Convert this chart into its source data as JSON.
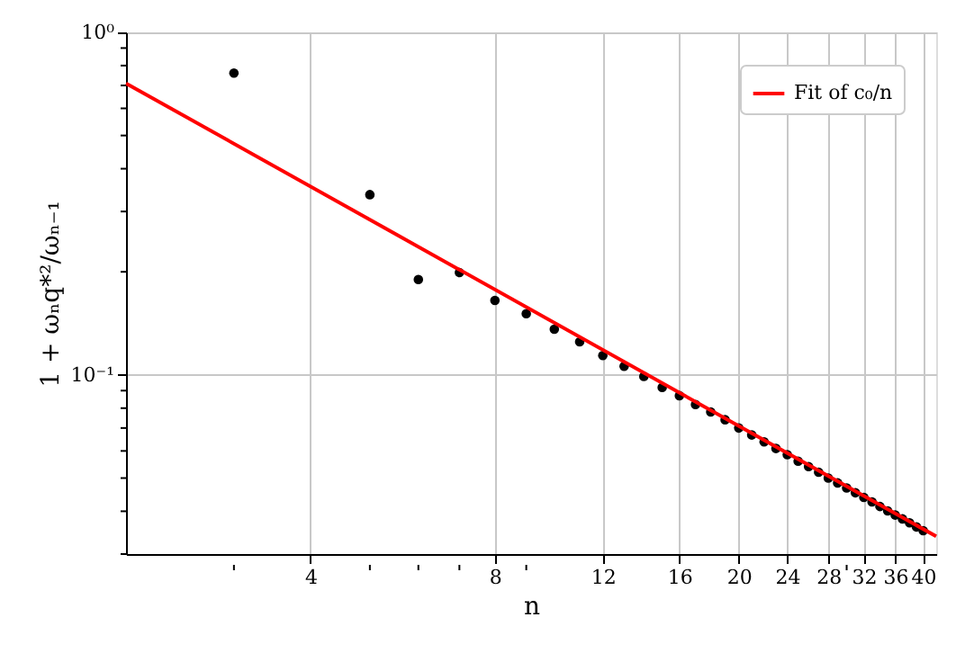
{
  "chart_data": {
    "type": "scatter",
    "xlabel": "n",
    "ylabel": "1 + ωₙq*²/ωₙ₋₁",
    "log": "xy",
    "grid": true,
    "legend": "top right",
    "xlim": [
      2,
      42
    ],
    "ylim": [
      0.03,
      1
    ],
    "xticks": [
      {
        "value": 3,
        "label": null
      },
      4,
      {
        "value": 5,
        "label": null
      },
      {
        "value": 6,
        "label": null
      },
      {
        "value": 7,
        "label": null
      },
      8,
      {
        "value": 9,
        "label": null
      },
      12,
      16,
      20,
      24,
      28,
      {
        "value": 30,
        "label": null
      },
      32,
      36,
      40
    ],
    "yticks": [
      {
        "value": 0.03,
        "label": null
      },
      {
        "value": 0.04,
        "label": null
      },
      {
        "value": 0.05,
        "label": null
      },
      {
        "value": 0.06,
        "label": null
      },
      {
        "value": 0.07,
        "label": null
      },
      {
        "value": 0.08,
        "label": null
      },
      {
        "value": 0.09,
        "label": null
      },
      {
        "value": 0.1,
        "label": "10⁻¹"
      },
      {
        "value": 0.2,
        "label": null
      },
      {
        "value": 0.3,
        "label": null
      },
      {
        "value": 0.4,
        "label": null
      },
      {
        "value": 0.5,
        "label": null
      },
      {
        "value": 0.6,
        "label": null
      },
      {
        "value": 0.7,
        "label": null
      },
      {
        "value": 0.8,
        "label": null
      },
      {
        "value": 0.9,
        "label": null
      },
      {
        "value": 1,
        "label": "10⁰"
      }
    ],
    "series": [
      {
        "marker": "circle",
        "color": "#000000",
        "x": [
          3,
          5,
          6,
          7,
          8,
          9,
          10,
          11,
          12,
          13,
          14,
          15,
          16,
          17,
          18,
          19,
          20,
          21,
          22,
          23,
          24,
          25,
          26,
          27,
          28,
          29,
          30,
          31,
          32,
          33,
          34,
          35,
          36,
          37,
          38,
          39,
          40
        ],
        "values": [
          0.761,
          0.336,
          0.19,
          0.199,
          0.165,
          0.151,
          0.136,
          0.125,
          0.114,
          0.106,
          0.099,
          0.092,
          0.087,
          0.082,
          0.078,
          0.074,
          0.07,
          0.0668,
          0.0638,
          0.061,
          0.0585,
          0.056,
          0.054,
          0.052,
          0.05,
          0.0484,
          0.0468,
          0.0453,
          0.0439,
          0.0426,
          0.0413,
          0.0401,
          0.039,
          0.038,
          0.037,
          0.036,
          0.0351
        ]
      },
      {
        "type": "line",
        "name": "Fit of c₀/n",
        "color": "#ff0000",
        "line_style": "solid",
        "x": [
          2,
          42
        ],
        "values": [
          0.71,
          0.0338
        ]
      }
    ]
  }
}
